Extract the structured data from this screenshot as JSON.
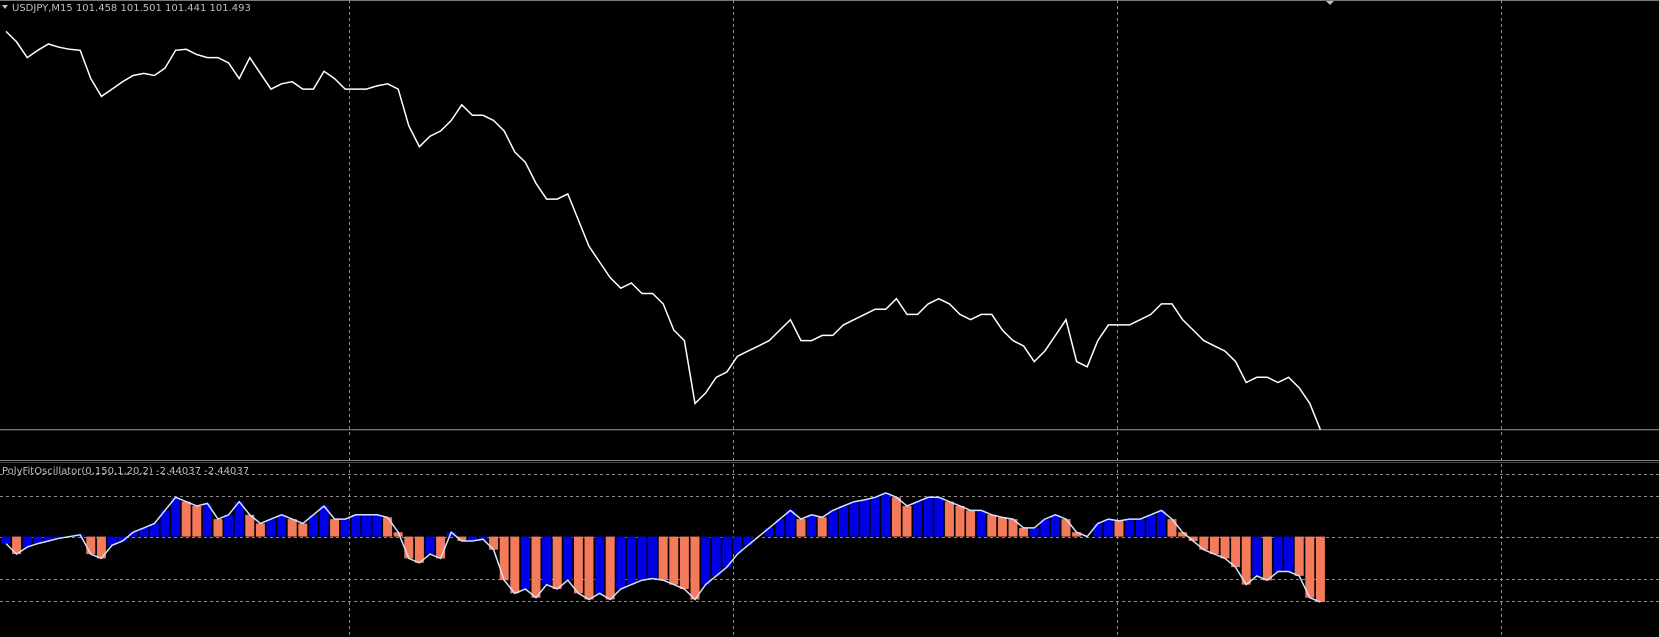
{
  "chart_data": [
    {
      "type": "line",
      "title": "USDJPY,M15  101.458 101.501 101.441 101.493",
      "color": "#ffffff",
      "last_price_line": true,
      "ylim": [
        -7,
        430
      ],
      "values": [
        400,
        390,
        375,
        382,
        388,
        385,
        383,
        382,
        355,
        338,
        345,
        352,
        358,
        360,
        358,
        365,
        382,
        383,
        378,
        375,
        375,
        370,
        355,
        375,
        360,
        345,
        350,
        352,
        345,
        345,
        362,
        355,
        345,
        345,
        345,
        348,
        350,
        345,
        310,
        290,
        300,
        305,
        315,
        330,
        320,
        320,
        315,
        305,
        285,
        275,
        255,
        240,
        240,
        245,
        220,
        195,
        180,
        165,
        155,
        160,
        150,
        150,
        140,
        115,
        105,
        45,
        55,
        70,
        75,
        90,
        95,
        100,
        105,
        115,
        125,
        105,
        105,
        110,
        110,
        120,
        125,
        130,
        135,
        135,
        145,
        130,
        130,
        140,
        145,
        140,
        130,
        125,
        130,
        130,
        115,
        105,
        100,
        85,
        95,
        110,
        125,
        85,
        80,
        105,
        120,
        120,
        120,
        125,
        130,
        140,
        140,
        125,
        115,
        105,
        100,
        95,
        85,
        65,
        70,
        70,
        65,
        70,
        60,
        45,
        20
      ]
    },
    {
      "type": "histogram",
      "title": "PolyFitOscillator(0,150,1,20,2) -2.44037 -2.44037",
      "rising_color": "#0000e6",
      "falling_color": "#f47a5c",
      "line_color": "#cfe3ff",
      "ylim": [
        -115,
        82
      ],
      "levels": [
        72,
        47,
        0,
        -49,
        -74
      ],
      "values": [
        -8,
        -20,
        -12,
        -8,
        -5,
        -2,
        0,
        2,
        -20,
        -25,
        -10,
        -5,
        5,
        10,
        15,
        30,
        45,
        40,
        35,
        38,
        20,
        25,
        40,
        25,
        15,
        20,
        25,
        20,
        15,
        25,
        35,
        20,
        20,
        25,
        25,
        25,
        22,
        5,
        -25,
        -30,
        -20,
        -25,
        5,
        -5,
        -5,
        -3,
        -15,
        -50,
        -65,
        -60,
        -70,
        -55,
        -60,
        -50,
        -65,
        -72,
        -65,
        -72,
        -60,
        -55,
        -50,
        -48,
        -50,
        -55,
        -60,
        -72,
        -55,
        -45,
        -35,
        -20,
        -10,
        0,
        10,
        20,
        30,
        20,
        25,
        22,
        30,
        35,
        40,
        42,
        45,
        50,
        45,
        35,
        40,
        45,
        45,
        40,
        35,
        30,
        30,
        25,
        22,
        20,
        10,
        10,
        20,
        25,
        20,
        5,
        0,
        15,
        20,
        18,
        20,
        20,
        25,
        30,
        20,
        5,
        -5,
        -15,
        -20,
        -25,
        -35,
        -55,
        -45,
        -50,
        -40,
        -40,
        -45,
        -70,
        -75
      ]
    }
  ]
}
